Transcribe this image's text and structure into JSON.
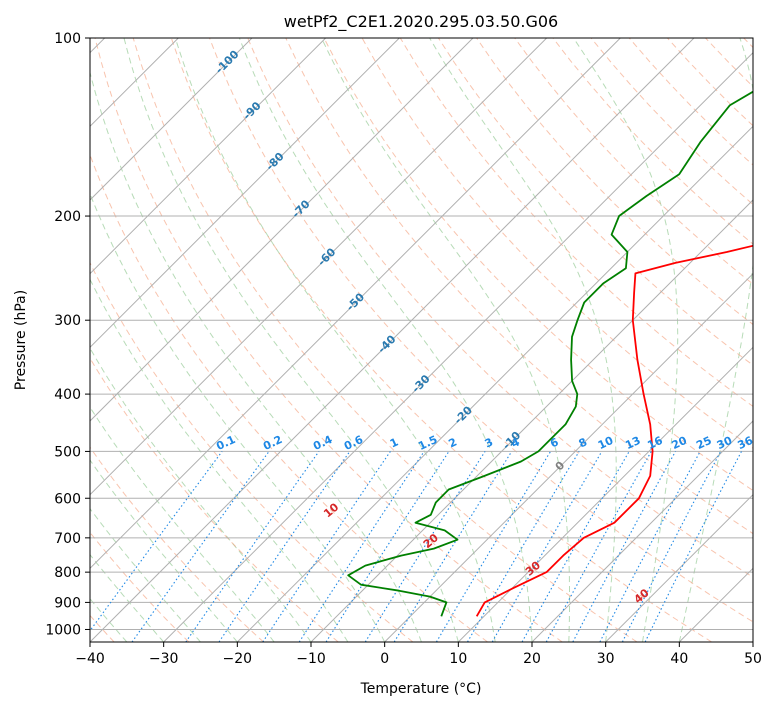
{
  "chart_data": {
    "type": "line",
    "subtype": "skew-t log-p diagram",
    "title": "wetPf2_C2E1.2020.295.03.50.G06",
    "xlabel": "Temperature (°C)",
    "ylabel": "Pressure (hPa)",
    "xlim": [
      -40,
      50
    ],
    "ylim": [
      1050,
      100
    ],
    "y_scale": "log",
    "x_ticks": [
      -40,
      -30,
      -20,
      -10,
      0,
      10,
      20,
      30,
      40,
      50
    ],
    "x_tick_labels": [
      "−40",
      "−30",
      "−20",
      "−10",
      "0",
      "10",
      "20",
      "30",
      "40",
      "50"
    ],
    "y_ticks": [
      100,
      200,
      300,
      400,
      500,
      600,
      700,
      800,
      900,
      1000
    ],
    "y_tick_labels": [
      "100",
      "200",
      "300",
      "400",
      "500",
      "600",
      "700",
      "800",
      "900",
      "1000"
    ],
    "grid": true,
    "colors": {
      "temperature": "#ff0000",
      "dewpoint": "#008000",
      "isotherm": "#b0b0b0",
      "dry_adiabat": "#f4a582",
      "moist_adiabat": "#99cc99",
      "mixing_ratio": "#1e88e5",
      "isotherm_label": "#2a7ab0",
      "dry_adiabat_label": "#d62728",
      "zero_label": "#808080"
    },
    "series": [
      {
        "key": "temperature",
        "points": [
          {
            "p": 950,
            "t": 9.0
          },
          {
            "p": 900,
            "t": 8.2
          },
          {
            "p": 850,
            "t": 10.2
          },
          {
            "p": 800,
            "t": 12.5
          },
          {
            "p": 750,
            "t": 12.5
          },
          {
            "p": 700,
            "t": 12.9
          },
          {
            "p": 660,
            "t": 15.0
          },
          {
            "p": 600,
            "t": 15.0
          },
          {
            "p": 550,
            "t": 13.5
          },
          {
            "p": 500,
            "t": 10.5
          },
          {
            "p": 450,
            "t": 6.5
          },
          {
            "p": 400,
            "t": 1.5
          },
          {
            "p": 350,
            "t": -4.0
          },
          {
            "p": 300,
            "t": -10.0
          },
          {
            "p": 270,
            "t": -13.5
          },
          {
            "p": 250,
            "t": -16.0
          },
          {
            "p": 240,
            "t": -12.0
          },
          {
            "p": 230,
            "t": -6.5
          },
          {
            "p": 220,
            "t": -1.5
          },
          {
            "p": 210,
            "t": 1.5
          },
          {
            "p": 200,
            "t": 3.0
          },
          {
            "p": 180,
            "t": 3.0
          },
          {
            "p": 160,
            "t": 3.5
          },
          {
            "p": 140,
            "t": 5.0
          },
          {
            "p": 120,
            "t": 9.0
          },
          {
            "p": 110,
            "t": 12.0
          },
          {
            "p": 100,
            "t": 15.0
          }
        ]
      },
      {
        "key": "dewpoint",
        "points": [
          {
            "p": 950,
            "t": 4.2
          },
          {
            "p": 900,
            "t": 3.0
          },
          {
            "p": 880,
            "t": 0.0
          },
          {
            "p": 860,
            "t": -5.0
          },
          {
            "p": 840,
            "t": -11.0
          },
          {
            "p": 810,
            "t": -14.0
          },
          {
            "p": 780,
            "t": -13.0
          },
          {
            "p": 750,
            "t": -9.5
          },
          {
            "p": 730,
            "t": -6.0
          },
          {
            "p": 705,
            "t": -4.0
          },
          {
            "p": 680,
            "t": -7.0
          },
          {
            "p": 660,
            "t": -12.0
          },
          {
            "p": 640,
            "t": -11.0
          },
          {
            "p": 610,
            "t": -12.0
          },
          {
            "p": 580,
            "t": -12.0
          },
          {
            "p": 550,
            "t": -9.0
          },
          {
            "p": 520,
            "t": -6.0
          },
          {
            "p": 500,
            "t": -5.0
          },
          {
            "p": 480,
            "t": -5.0
          },
          {
            "p": 450,
            "t": -5.0
          },
          {
            "p": 420,
            "t": -6.0
          },
          {
            "p": 400,
            "t": -7.5
          },
          {
            "p": 380,
            "t": -10.0
          },
          {
            "p": 350,
            "t": -13.0
          },
          {
            "p": 320,
            "t": -16.0
          },
          {
            "p": 300,
            "t": -17.5
          },
          {
            "p": 280,
            "t": -19.0
          },
          {
            "p": 260,
            "t": -19.0
          },
          {
            "p": 245,
            "t": -18.0
          },
          {
            "p": 230,
            "t": -20.0
          },
          {
            "p": 215,
            "t": -24.5
          },
          {
            "p": 200,
            "t": -26.0
          },
          {
            "p": 185,
            "t": -25.0
          },
          {
            "p": 170,
            "t": -23.5
          },
          {
            "p": 150,
            "t": -25.0
          },
          {
            "p": 130,
            "t": -26.0
          },
          {
            "p": 115,
            "t": -23.0
          },
          {
            "p": 100,
            "t": -20.0
          }
        ]
      }
    ],
    "isotherm_labels": [
      {
        "text": "-100",
        "t": -100,
        "p": 110
      },
      {
        "text": "-90",
        "t": -90,
        "p": 133
      },
      {
        "text": "-80",
        "t": -80,
        "p": 162
      },
      {
        "text": "-70",
        "t": -70,
        "p": 195
      },
      {
        "text": "-60",
        "t": -60,
        "p": 235
      },
      {
        "text": "-50",
        "t": -50,
        "p": 280
      },
      {
        "text": "-40",
        "t": -40,
        "p": 330
      },
      {
        "text": "-30",
        "t": -30,
        "p": 385
      },
      {
        "text": "-20",
        "t": -20,
        "p": 435
      },
      {
        "text": "-10",
        "t": -10,
        "p": 480
      },
      {
        "text": "0",
        "t": 0,
        "p": 530
      }
    ],
    "dry_adiabat_labels": [
      {
        "text": "10",
        "t": 10,
        "p": 630
      },
      {
        "text": "20",
        "t": 20,
        "p": 710
      },
      {
        "text": "30",
        "t": 30,
        "p": 790
      },
      {
        "text": "40",
        "t": 40,
        "p": 880
      }
    ],
    "mixing_ratio_lines": [
      0.1,
      0.2,
      0.4,
      0.6,
      1,
      1.5,
      2,
      3,
      4,
      6,
      8,
      10,
      13,
      16,
      20,
      25,
      30,
      36
    ],
    "mixing_ratio_labels": [
      "0.1",
      "0.2",
      "0.4",
      "0.6",
      "1",
      "1.5",
      "2",
      "3",
      "4",
      "6",
      "8",
      "10",
      "13",
      "16",
      "20",
      "25",
      "30",
      "36"
    ],
    "mixing_ratio_label_pressure": 500
  }
}
